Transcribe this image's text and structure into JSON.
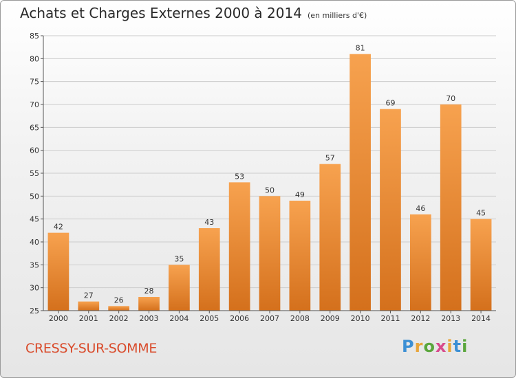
{
  "title": "Achats et Charges Externes 2000 à 2014",
  "subtitle": "(en milliers d'€)",
  "location": "CRESSY-SUR-SOMME",
  "brand": {
    "text": "Proxiti",
    "letters": [
      "P",
      "r",
      "o",
      "x",
      "i",
      "t",
      "i"
    ],
    "letter_colors": [
      "#3b8fd4",
      "#e8a53a",
      "#5aa63c",
      "#d84a8c",
      "#e8a53a",
      "#3b8fd4",
      "#5aa63c"
    ]
  },
  "colors": {
    "bar_top": "#f7a24f",
    "bar_bottom": "#d4701c",
    "grid": "#cccccc",
    "axis": "#555555",
    "town": "#d94b2b"
  },
  "chart_data": {
    "type": "bar",
    "title": "Achats et Charges Externes 2000 à 2014",
    "subtitle": "(en milliers d'€)",
    "xlabel": "",
    "ylabel": "",
    "categories": [
      "2000",
      "2001",
      "2002",
      "2003",
      "2004",
      "2005",
      "2006",
      "2007",
      "2008",
      "2009",
      "2010",
      "2011",
      "2012",
      "2013",
      "2014"
    ],
    "values": [
      42,
      27,
      26,
      28,
      35,
      43,
      53,
      50,
      49,
      57,
      81,
      69,
      46,
      70,
      45
    ],
    "ylim": [
      25,
      85
    ],
    "yticks": [
      25,
      30,
      35,
      40,
      45,
      50,
      55,
      60,
      65,
      70,
      75,
      80,
      85
    ],
    "grid": true,
    "data_labels": true
  }
}
